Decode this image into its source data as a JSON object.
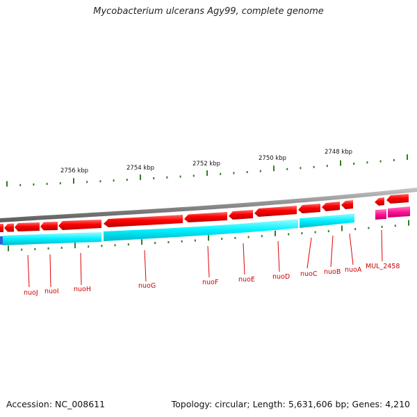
{
  "title": "Mycobacterium ulcerans Agy99, complete genome",
  "footer": {
    "accession_label": "Accession: NC_008611",
    "summary": "Topology: circular; Length: 5,631,606 bp; Genes: 4,210"
  },
  "scale": {
    "labels": [
      {
        "kbp": 2756,
        "text": "2756 kbp"
      },
      {
        "kbp": 2754,
        "text": "2754 kbp"
      },
      {
        "kbp": 2752,
        "text": "2752 kbp"
      },
      {
        "kbp": 2750,
        "text": "2750 kbp"
      },
      {
        "kbp": 2748,
        "text": "2748 kbp"
      }
    ]
  },
  "genes": [
    {
      "name": "nuoJ"
    },
    {
      "name": "nuoI"
    },
    {
      "name": "nuoH"
    },
    {
      "name": "nuoG"
    },
    {
      "name": "nuoF"
    },
    {
      "name": "nuoE"
    },
    {
      "name": "nuoD"
    },
    {
      "name": "nuoC"
    },
    {
      "name": "nuoB"
    },
    {
      "name": "nuoA"
    },
    {
      "name": "MUL_2458"
    }
  ],
  "colors": {
    "backbone": "#8a8a8a",
    "cds": "#ee0000",
    "rna_track": "#00ffff",
    "pseudo_cds": "#ff1493",
    "tick": "#2e7d1e",
    "label": "#cc0000"
  }
}
